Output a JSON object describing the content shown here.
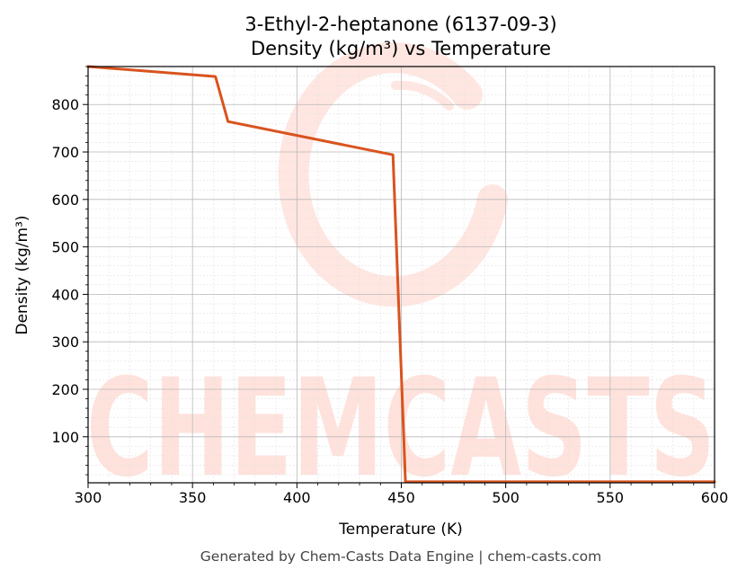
{
  "chart_data": {
    "type": "line",
    "title": "3-Ethyl-2-heptanone (6137-09-3)",
    "subtitle": "Density (kg/m³) vs Temperature",
    "xlabel": "Temperature (K)",
    "ylabel": "Density (kg/m³)",
    "xlim": [
      300,
      600
    ],
    "ylim": [
      3,
      880
    ],
    "xticks": [
      300,
      350,
      400,
      450,
      500,
      550,
      600
    ],
    "yticks": [
      100,
      200,
      300,
      400,
      500,
      600,
      700,
      800
    ],
    "grid": true,
    "series": [
      {
        "color": "#d9531e",
        "x": [
          300,
          361,
          367,
          446,
          452,
          600
        ],
        "y": [
          880,
          859,
          764,
          694,
          5,
          5
        ]
      }
    ]
  },
  "watermark": {
    "text": "CHEMCASTS",
    "color": "#ffe2dc"
  },
  "footer": "Generated by Chem-Casts Data Engine | chem-casts.com"
}
